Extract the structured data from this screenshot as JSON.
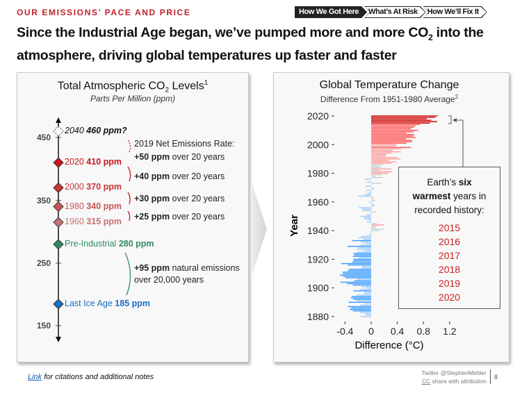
{
  "header": {
    "kicker": "OUR EMISSIONS’ PACE AND PRICE",
    "tabs": [
      {
        "label": "How We Got Here",
        "active": true
      },
      {
        "label": "What’s At Risk",
        "active": false
      },
      {
        "label": "How We’ll Fix It",
        "active": false
      }
    ],
    "headline_part1": "Since the Industrial Age began, we’ve pumped more and more CO",
    "headline_sub": "2",
    "headline_part2": " into the atmosphere, driving global temperatures up faster and faster"
  },
  "co2_panel": {
    "title": "Total Atmospheric CO",
    "title_sub": "2",
    "title_after": " Levels",
    "title_sup": "1",
    "subtitle": "Parts Per Million (ppm)",
    "ticks": [
      "450",
      "350",
      "250",
      "150"
    ],
    "points": [
      {
        "label": "2040",
        "value": "460 ppm?",
        "color": "#111111"
      },
      {
        "label": "2020",
        "value": "410 ppm",
        "color": "#c8161d"
      },
      {
        "label": "2000",
        "value": "370 ppm",
        "color": "#cc3333"
      },
      {
        "label": "1980",
        "value": "340 ppm",
        "color": "#c85555"
      },
      {
        "label": "1960",
        "value": "315 ppm",
        "color": "#c87070"
      },
      {
        "label": "Pre-Industrial",
        "value": "280 ppm",
        "color": "#2e8b62"
      },
      {
        "label": "Last Ice Age",
        "value": "185 ppm",
        "color": "#1a6fc4"
      }
    ],
    "annotations": [
      {
        "intro": "2019 Net Emissions Rate:",
        "bold": "+50 ppm",
        "rest": " over 20 years"
      },
      {
        "bold": "+40 ppm",
        "rest": " over 20 years"
      },
      {
        "bold": "+30 ppm",
        "rest": " over 20 years"
      },
      {
        "bold": "+25 ppm",
        "rest": " over 20 years"
      },
      {
        "bold": "+95 ppm",
        "rest": " natural emissions",
        "line2": "over 20,000 years"
      }
    ]
  },
  "temp_panel": {
    "callout_pre": "Earth’s ",
    "callout_bold1": "six",
    "callout_bold2": "warmest",
    "callout_mid": " years in",
    "callout_end": "recorded history:",
    "warmest_years": [
      "2015",
      "2016",
      "2017",
      "2018",
      "2019",
      "2020"
    ]
  },
  "chart_data": {
    "type": "bar",
    "orientation": "horizontal",
    "title": "Global Temperature Change",
    "subtitle": "Difference From 1951-1980 Average",
    "subtitle_sup": "2",
    "xlabel": "Difference (°C)",
    "ylabel": "Year",
    "xlim": [
      -0.5,
      1.3
    ],
    "ylim": [
      1880,
      2020
    ],
    "xticks": [
      "-0.4",
      "0",
      "0.4",
      "0.8",
      "1.2"
    ],
    "yticks": [
      "2020",
      "2000",
      "1980",
      "1960",
      "1940",
      "1920",
      "1900",
      "1880"
    ],
    "start_year": 1880,
    "values": [
      -0.16,
      -0.08,
      -0.1,
      -0.17,
      -0.28,
      -0.33,
      -0.31,
      -0.36,
      -0.17,
      -0.1,
      -0.35,
      -0.22,
      -0.27,
      -0.31,
      -0.3,
      -0.22,
      -0.11,
      -0.11,
      -0.27,
      -0.17,
      -0.08,
      -0.15,
      -0.28,
      -0.37,
      -0.47,
      -0.26,
      -0.22,
      -0.39,
      -0.43,
      -0.48,
      -0.43,
      -0.44,
      -0.36,
      -0.34,
      -0.15,
      -0.14,
      -0.36,
      -0.46,
      -0.29,
      -0.27,
      -0.27,
      -0.19,
      -0.28,
      -0.26,
      -0.27,
      -0.22,
      -0.1,
      -0.22,
      -0.2,
      -0.36,
      -0.16,
      -0.09,
      -0.16,
      -0.29,
      -0.12,
      -0.2,
      -0.15,
      -0.03,
      -0.01,
      -0.02,
      0.13,
      0.19,
      0.07,
      0.09,
      0.2,
      0.09,
      -0.07,
      -0.03,
      -0.11,
      -0.11,
      -0.17,
      -0.07,
      0.01,
      0.08,
      -0.13,
      -0.14,
      -0.19,
      0.05,
      0.06,
      0.03,
      -0.03,
      0.06,
      0.03,
      0.05,
      -0.2,
      -0.11,
      -0.06,
      -0.02,
      -0.08,
      0.05,
      0.03,
      -0.08,
      0.01,
      0.16,
      -0.07,
      -0.01,
      -0.1,
      0.18,
      0.07,
      0.16,
      0.26,
      0.32,
      0.14,
      0.31,
      0.16,
      0.12,
      0.18,
      0.32,
      0.39,
      0.27,
      0.45,
      0.4,
      0.22,
      0.23,
      0.31,
      0.45,
      0.33,
      0.46,
      0.61,
      0.38,
      0.39,
      0.54,
      0.63,
      0.62,
      0.53,
      0.68,
      0.64,
      0.66,
      0.54,
      0.65,
      0.72,
      0.61,
      0.65,
      0.68,
      0.75,
      0.9,
      1.01,
      0.92,
      0.85,
      0.98,
      1.02
    ],
    "colors": {
      "strong_cold": "#3399ff",
      "cold": "#9fcdf7",
      "neutral": "#c8cfcf",
      "warm": "#ff9a9a",
      "hot": "#ff5050",
      "record": "#cc0000"
    }
  },
  "footer": {
    "link_label": "Link",
    "link_rest": " for citations and additional notes",
    "credit_line1": "Twitter @StephenMettler",
    "credit_cc": "CC",
    "credit_line2_rest": " share with attribution",
    "page_number": "8"
  }
}
